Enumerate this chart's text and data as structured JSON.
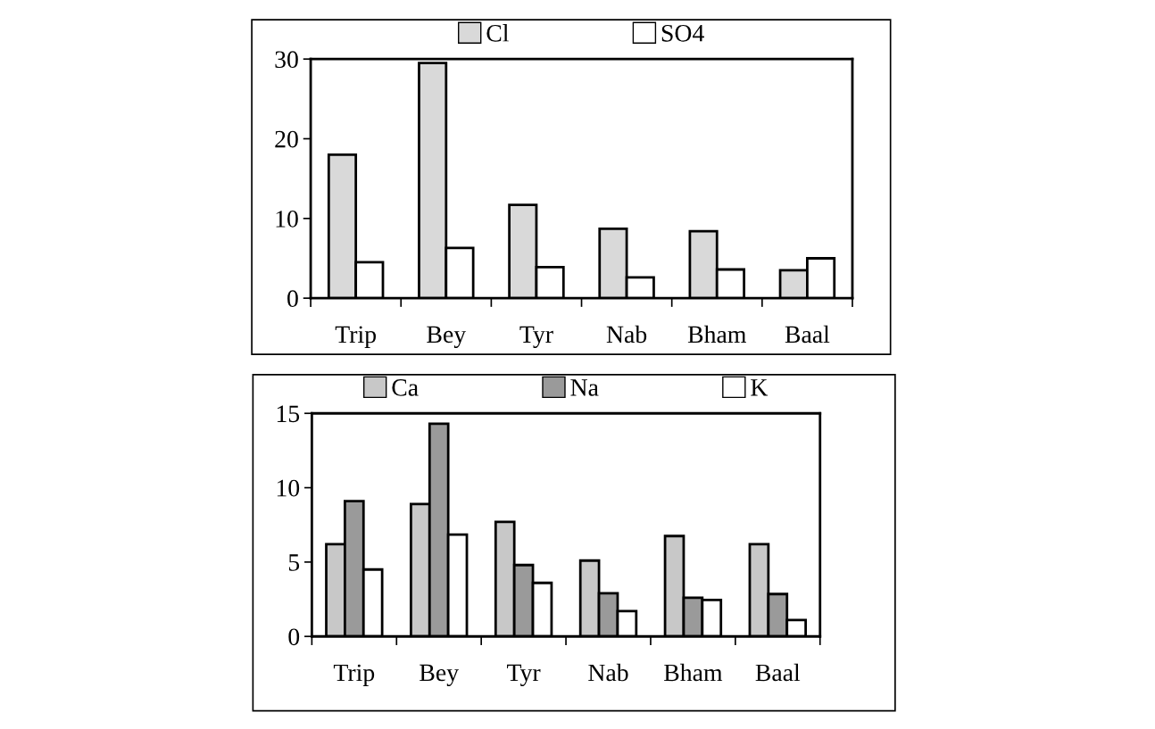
{
  "chart_data": [
    {
      "type": "bar",
      "categories": [
        "Trip",
        "Bey",
        "Tyr",
        "Nab",
        "Bham",
        "Baal"
      ],
      "series": [
        {
          "name": "Cl",
          "color": "#d9d9d9",
          "values": [
            18,
            29.5,
            11.7,
            8.7,
            8.4,
            3.5
          ]
        },
        {
          "name": "SO4",
          "color": "#ffffff",
          "values": [
            4.5,
            6.3,
            3.9,
            2.6,
            3.6,
            5.0
          ]
        }
      ],
      "ylim": [
        0,
        30
      ],
      "yticks": [
        0,
        10,
        20,
        30
      ],
      "grid": false,
      "legend": "top"
    },
    {
      "type": "bar",
      "categories": [
        "Trip",
        "Bey",
        "Tyr",
        "Nab",
        "Bham",
        "Baal"
      ],
      "series": [
        {
          "name": "Ca",
          "color": "#c8c8c8",
          "values": [
            6.2,
            8.9,
            7.7,
            5.1,
            6.75,
            6.2
          ]
        },
        {
          "name": "Na",
          "color": "#9a9a9a",
          "values": [
            9.1,
            14.3,
            4.8,
            2.9,
            2.6,
            2.85
          ]
        },
        {
          "name": "K",
          "color": "#ffffff",
          "values": [
            4.5,
            6.85,
            3.6,
            1.7,
            2.45,
            1.1
          ]
        }
      ],
      "ylim": [
        0,
        15
      ],
      "yticks": [
        0,
        5,
        10,
        15
      ],
      "grid": false,
      "legend": "top"
    }
  ]
}
